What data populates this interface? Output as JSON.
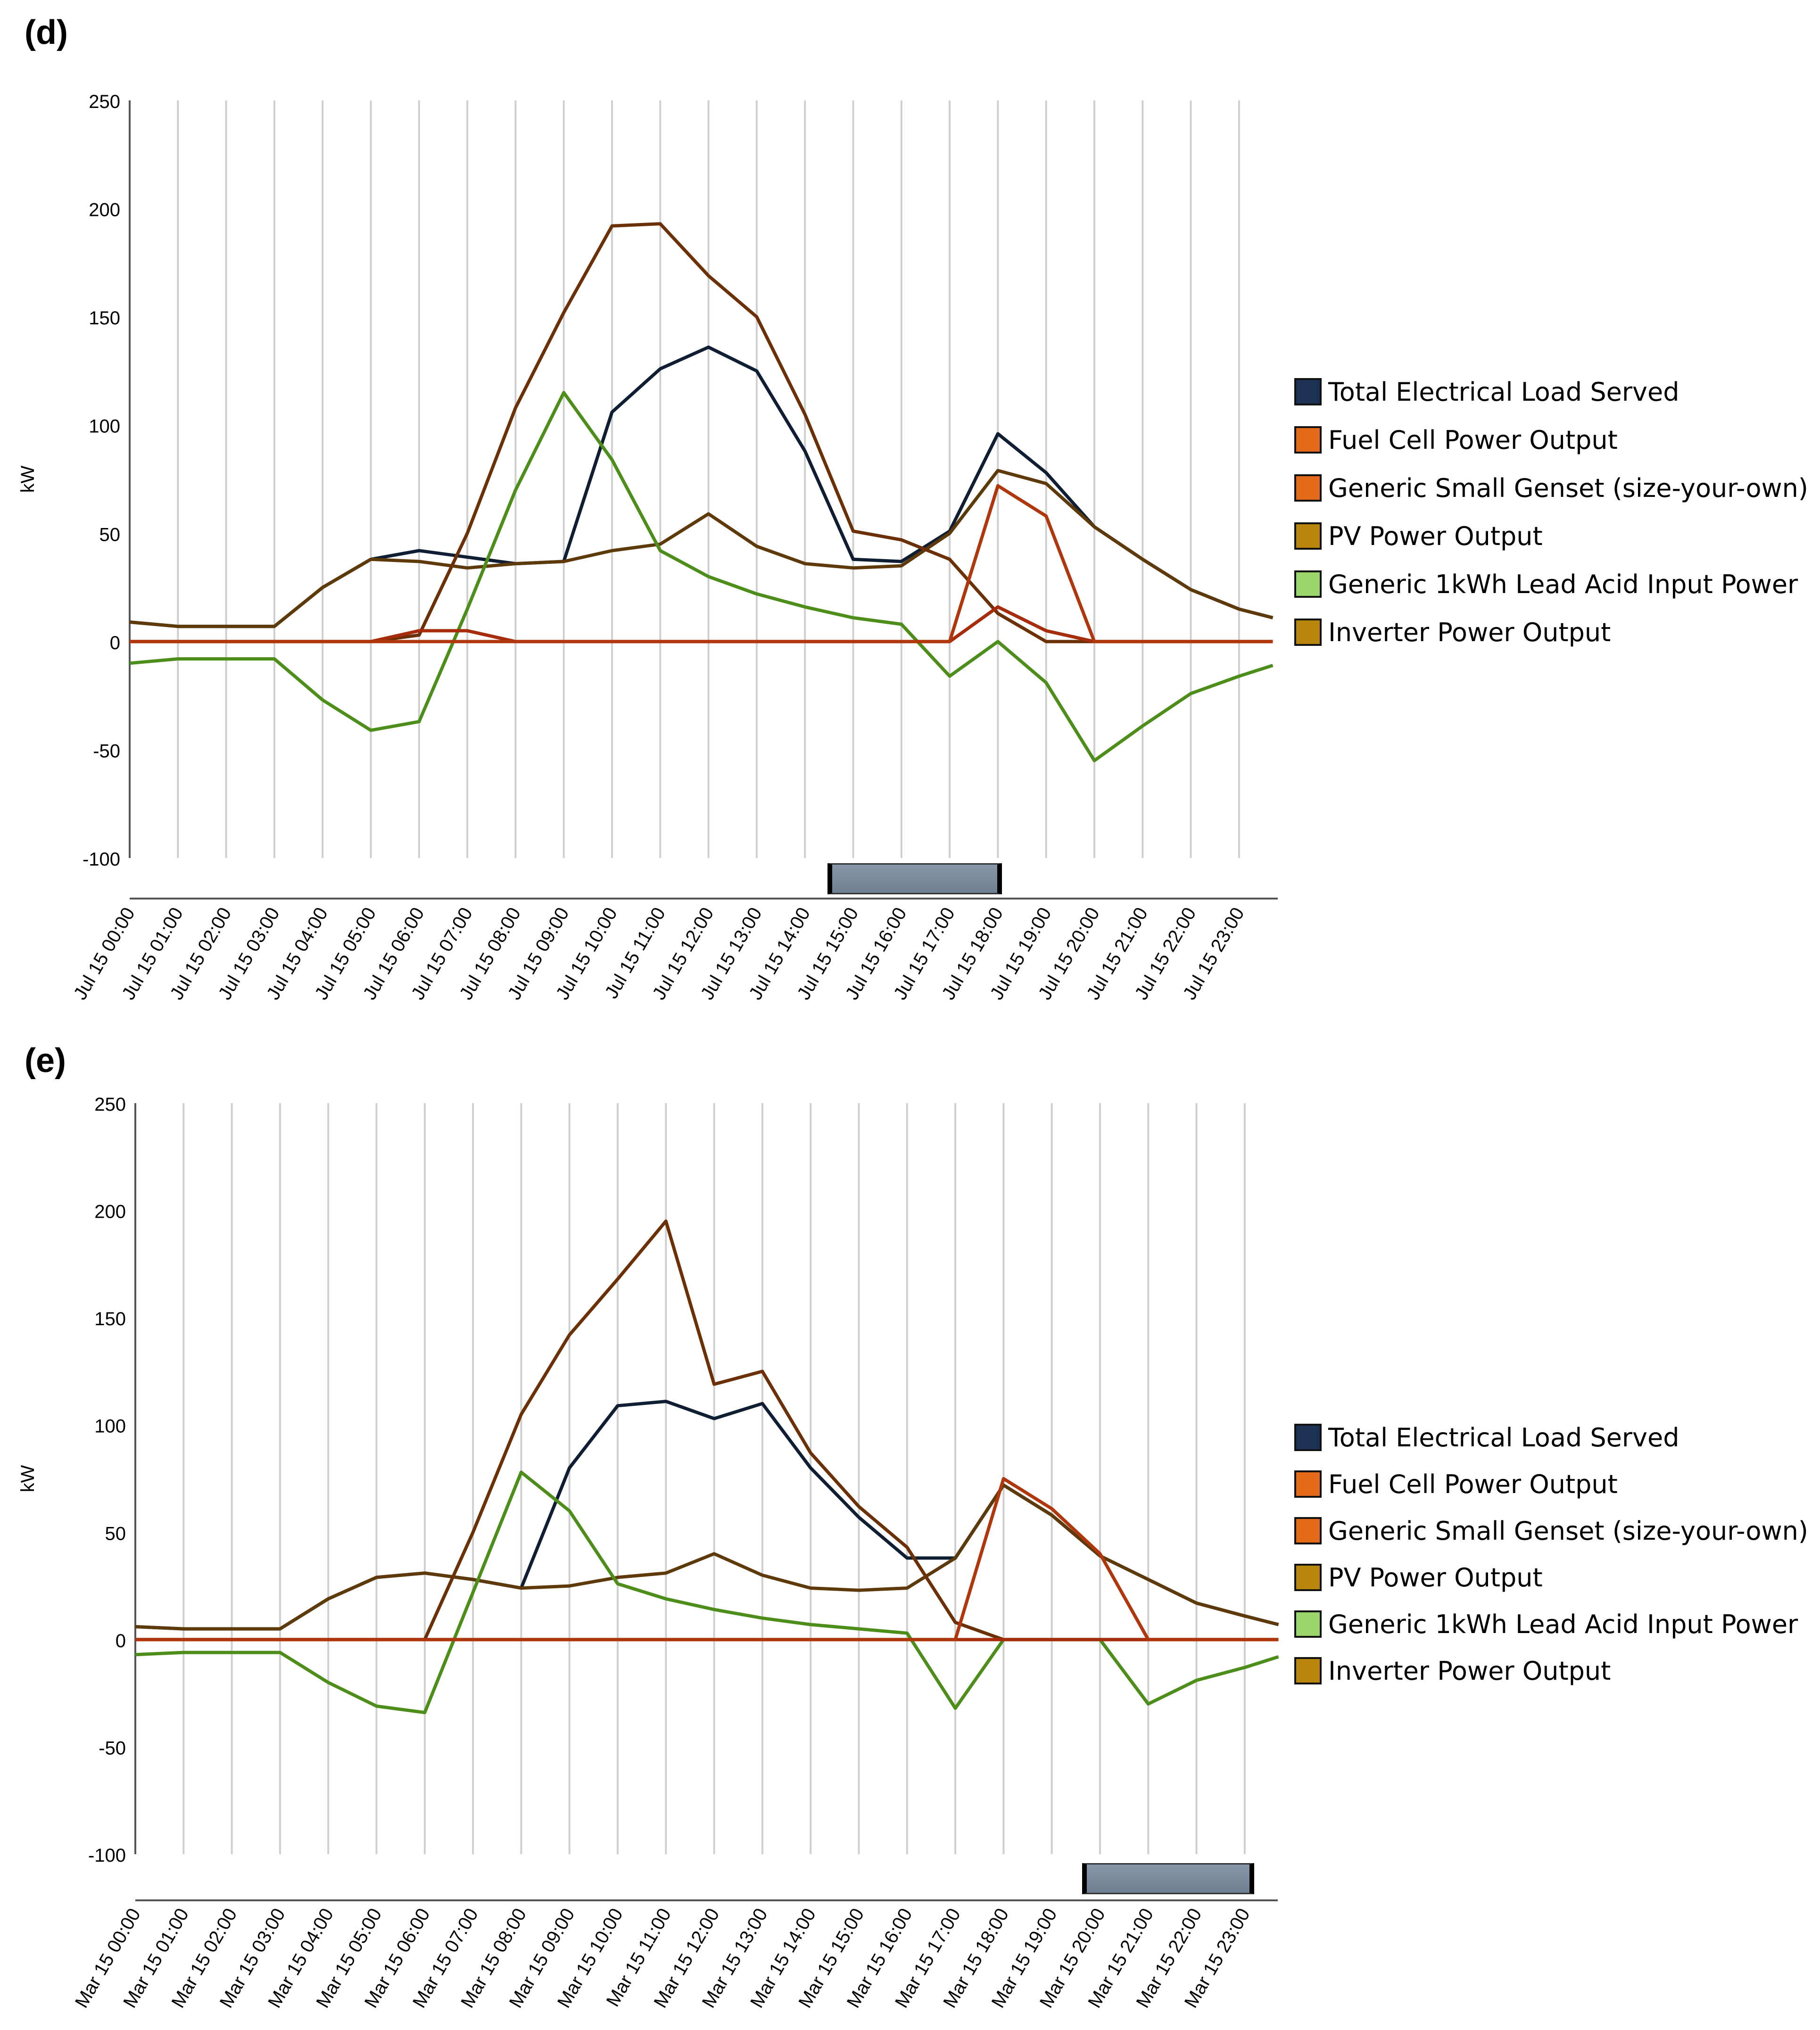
{
  "colors": {
    "total_load": "#0f1e33",
    "fuel_cell": "#a62c0c",
    "genset": "#b0360c",
    "pv": "#6b3006",
    "battery": "#4d8d1a",
    "inverter": "#5e3a0a",
    "swatch_load": "#1c3252",
    "swatch_fuel": "#e46a1a",
    "swatch_genset": "#e46a1a",
    "swatch_pv": "#b8860b",
    "swatch_battery": "#9bd66b",
    "swatch_inverter": "#b8860b",
    "grid": "#cfcfcf",
    "axis": "#555555"
  },
  "chart_data": [
    {
      "panel_label": "(d)",
      "type": "line",
      "ylabel": "kW",
      "ylim": [
        -100,
        250
      ],
      "yticks": [
        250,
        200,
        150,
        100,
        50,
        0,
        -50,
        -100
      ],
      "categories": [
        "Jul 15 00:00",
        "Jul 15 01:00",
        "Jul 15 02:00",
        "Jul 15 03:00",
        "Jul 15 04:00",
        "Jul 15 05:00",
        "Jul 15 06:00",
        "Jul 15 07:00",
        "Jul 15 08:00",
        "Jul 15 09:00",
        "Jul 15 10:00",
        "Jul 15 11:00",
        "Jul 15 12:00",
        "Jul 15 13:00",
        "Jul 15 14:00",
        "Jul 15 15:00",
        "Jul 15 16:00",
        "Jul 15 17:00",
        "Jul 15 18:00",
        "Jul 15 19:00",
        "Jul 15 20:00",
        "Jul 15 21:00",
        "Jul 15 22:00",
        "Jul 15 23:00"
      ],
      "legend": [
        "Total Electrical Load Served",
        "Fuel Cell Power Output",
        "Generic Small Genset (size-your-own) Power Output",
        "PV Power Output",
        "Generic 1kWh Lead Acid Input Power",
        "Inverter Power Output"
      ],
      "series": [
        {
          "name": "Total Electrical Load Served",
          "color_key": "total_load",
          "x": [
            0,
            1,
            2,
            3,
            4,
            5,
            6,
            7,
            8,
            9,
            10,
            11,
            12,
            13,
            14,
            15,
            16,
            17,
            18,
            19,
            20,
            21,
            22,
            23,
            23.7
          ],
          "values": [
            9,
            7,
            7,
            7,
            25,
            38,
            42,
            39,
            36,
            37,
            106,
            126,
            136,
            125,
            88,
            38,
            37,
            51,
            96,
            78,
            53,
            38,
            24,
            15,
            11
          ]
        },
        {
          "name": "Inverter Power Output",
          "color_key": "inverter",
          "x": [
            0,
            1,
            2,
            3,
            4,
            5,
            6,
            7,
            8,
            9,
            10,
            11,
            12,
            13,
            14,
            15,
            16,
            17,
            18,
            19,
            20,
            21,
            22,
            23,
            23.7
          ],
          "values": [
            9,
            7,
            7,
            7,
            25,
            38,
            37,
            34,
            36,
            37,
            42,
            45,
            59,
            44,
            36,
            34,
            35,
            50,
            79,
            73,
            53,
            38,
            24,
            15,
            11
          ]
        },
        {
          "name": "PV Power Output",
          "color_key": "pv",
          "x": [
            0,
            1,
            2,
            3,
            4,
            5,
            6,
            7,
            8,
            9,
            10,
            11,
            12,
            13,
            14,
            15,
            16,
            17,
            18,
            19,
            20,
            21,
            22,
            23,
            23.7
          ],
          "values": [
            0,
            0,
            0,
            0,
            0,
            0,
            3,
            50,
            108,
            152,
            192,
            193,
            169,
            150,
            105,
            51,
            47,
            38,
            13,
            0,
            0,
            0,
            0,
            0,
            0
          ]
        },
        {
          "name": "Generic 1kWh Lead Acid Input Power",
          "color_key": "battery",
          "x": [
            0,
            1,
            2,
            3,
            4,
            5,
            6,
            7,
            8,
            9,
            10,
            11,
            12,
            13,
            14,
            15,
            16,
            17,
            18,
            19,
            20,
            21,
            22,
            23,
            23.7
          ],
          "values": [
            -10,
            -8,
            -8,
            -8,
            -27,
            -41,
            -37,
            15,
            70,
            115,
            84,
            42,
            30,
            22,
            16,
            11,
            8,
            -16,
            0,
            -19,
            -55,
            -39,
            -24,
            -16,
            -11
          ]
        },
        {
          "name": "Fuel Cell Power Output",
          "color_key": "fuel_cell",
          "x": [
            0,
            1,
            2,
            3,
            4,
            5,
            6,
            7,
            8,
            9,
            10,
            11,
            12,
            13,
            14,
            15,
            16,
            17,
            18,
            19,
            20,
            21,
            22,
            23,
            23.7
          ],
          "values": [
            0,
            0,
            0,
            0,
            0,
            0,
            5,
            5,
            0,
            0,
            0,
            0,
            0,
            0,
            0,
            0,
            0,
            0,
            16,
            5,
            0,
            0,
            0,
            0,
            0
          ]
        },
        {
          "name": "Generic Small Genset (size-your-own) Power Output",
          "color_key": "genset",
          "x": [
            0,
            1,
            2,
            3,
            4,
            5,
            6,
            7,
            8,
            9,
            10,
            11,
            12,
            13,
            14,
            15,
            16,
            17,
            18,
            19,
            20,
            21,
            22,
            23,
            23.7
          ],
          "values": [
            0,
            0,
            0,
            0,
            0,
            0,
            0,
            0,
            0,
            0,
            0,
            0,
            0,
            0,
            0,
            0,
            0,
            0,
            72,
            58,
            0,
            0,
            0,
            0,
            0
          ]
        }
      ]
    },
    {
      "panel_label": "(e)",
      "type": "line",
      "ylabel": "kW",
      "ylim": [
        -100,
        250
      ],
      "yticks": [
        250,
        200,
        150,
        100,
        50,
        0,
        -50,
        -100
      ],
      "categories": [
        "Mar 15 00:00",
        "Mar 15 01:00",
        "Mar 15 02:00",
        "Mar 15 03:00",
        "Mar 15 04:00",
        "Mar 15 05:00",
        "Mar 15 06:00",
        "Mar 15 07:00",
        "Mar 15 08:00",
        "Mar 15 09:00",
        "Mar 15 10:00",
        "Mar 15 11:00",
        "Mar 15 12:00",
        "Mar 15 13:00",
        "Mar 15 14:00",
        "Mar 15 15:00",
        "Mar 15 16:00",
        "Mar 15 17:00",
        "Mar 15 18:00",
        "Mar 15 19:00",
        "Mar 15 20:00",
        "Mar 15 21:00",
        "Mar 15 22:00",
        "Mar 15 23:00"
      ],
      "legend": [
        "Total Electrical Load Served",
        "Fuel Cell Power Output",
        "Generic Small Genset (size-your-own) Power Output",
        "PV Power Output",
        "Generic 1kWh Lead Acid Input Power",
        "Inverter Power Output"
      ],
      "series": [
        {
          "name": "Total Electrical Load Served",
          "color_key": "total_load",
          "x": [
            0,
            1,
            2,
            3,
            4,
            5,
            6,
            7,
            8,
            9,
            10,
            11,
            12,
            13,
            14,
            15,
            16,
            17,
            18,
            19,
            20,
            21,
            22,
            23,
            23.7
          ],
          "values": [
            6,
            5,
            5,
            5,
            19,
            29,
            31,
            28,
            24,
            80,
            109,
            111,
            103,
            110,
            80,
            57,
            38,
            38,
            72,
            58,
            39,
            28,
            17,
            11,
            7
          ]
        },
        {
          "name": "Inverter Power Output",
          "color_key": "inverter",
          "x": [
            0,
            1,
            2,
            3,
            4,
            5,
            6,
            7,
            8,
            9,
            10,
            11,
            12,
            13,
            14,
            15,
            16,
            17,
            18,
            19,
            20,
            21,
            22,
            23,
            23.7
          ],
          "values": [
            6,
            5,
            5,
            5,
            19,
            29,
            31,
            28,
            24,
            25,
            29,
            31,
            40,
            30,
            24,
            23,
            24,
            38,
            72,
            58,
            39,
            28,
            17,
            11,
            7
          ]
        },
        {
          "name": "PV Power Output",
          "color_key": "pv",
          "x": [
            0,
            1,
            2,
            3,
            4,
            5,
            6,
            7,
            8,
            9,
            10,
            11,
            12,
            13,
            14,
            15,
            16,
            17,
            18,
            19,
            20,
            21,
            22,
            23,
            23.7
          ],
          "values": [
            0,
            0,
            0,
            0,
            0,
            0,
            0,
            50,
            105,
            142,
            168,
            195,
            119,
            125,
            87,
            62,
            43,
            8,
            0,
            0,
            0,
            0,
            0,
            0,
            0
          ]
        },
        {
          "name": "Generic 1kWh Lead Acid Input Power",
          "color_key": "battery",
          "x": [
            0,
            1,
            2,
            3,
            4,
            5,
            6,
            7,
            8,
            9,
            10,
            11,
            12,
            13,
            14,
            15,
            16,
            17,
            18,
            19,
            20,
            21,
            22,
            23,
            23.7
          ],
          "values": [
            -7,
            -6,
            -6,
            -6,
            -20,
            -31,
            -34,
            22,
            78,
            60,
            26,
            19,
            14,
            10,
            7,
            5,
            3,
            -32,
            0,
            0,
            0,
            -30,
            -19,
            -13,
            -8
          ]
        },
        {
          "name": "Fuel Cell Power Output",
          "color_key": "fuel_cell",
          "x": [
            0,
            1,
            2,
            3,
            4,
            5,
            6,
            7,
            8,
            9,
            10,
            11,
            12,
            13,
            14,
            15,
            16,
            17,
            18,
            19,
            20,
            21,
            22,
            23,
            23.7
          ],
          "values": [
            0,
            0,
            0,
            0,
            0,
            0,
            0,
            0,
            0,
            0,
            0,
            0,
            0,
            0,
            0,
            0,
            0,
            0,
            0,
            0,
            0,
            0,
            0,
            0,
            0
          ]
        },
        {
          "name": "Generic Small Genset (size-your-own) Power Output",
          "color_key": "genset",
          "x": [
            0,
            1,
            2,
            3,
            4,
            5,
            6,
            7,
            8,
            9,
            10,
            11,
            12,
            13,
            14,
            15,
            16,
            17,
            18,
            19,
            20,
            21,
            22,
            23,
            23.7
          ],
          "values": [
            0,
            0,
            0,
            0,
            0,
            0,
            0,
            0,
            0,
            0,
            0,
            0,
            0,
            0,
            0,
            0,
            0,
            0,
            75,
            61,
            40,
            0,
            0,
            0,
            0
          ]
        }
      ]
    }
  ]
}
